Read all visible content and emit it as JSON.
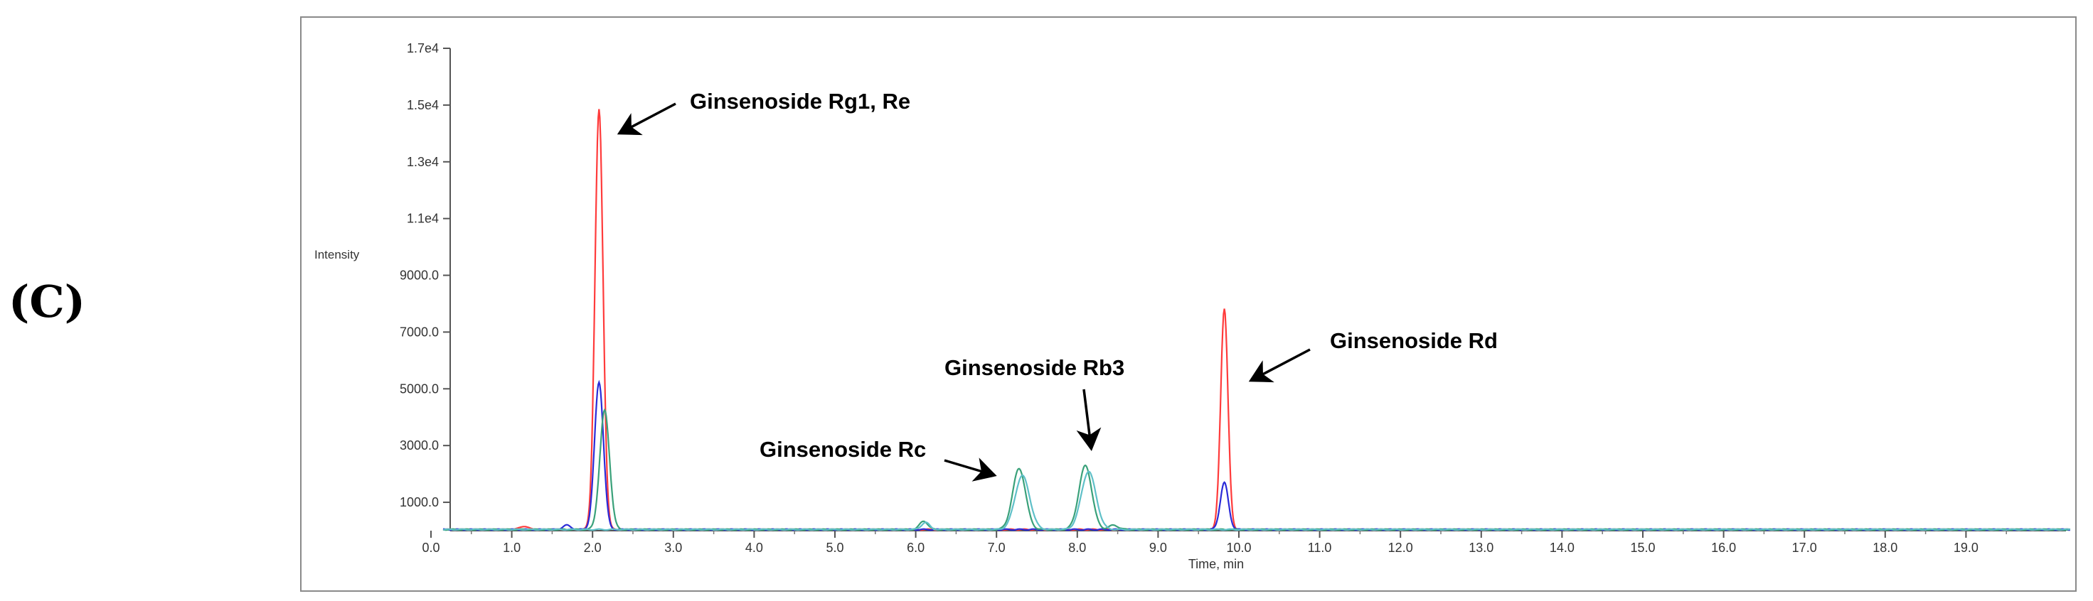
{
  "panel_label": "(C)",
  "chart_data": {
    "type": "line",
    "title": "",
    "xlabel": "Time, min",
    "ylabel": "Intensity",
    "xlim": [
      0,
      20.3
    ],
    "ylim": [
      0,
      17000
    ],
    "x_ticks": [
      0,
      1,
      2,
      3,
      4,
      5,
      6,
      7,
      8,
      9,
      10,
      11,
      12,
      13,
      14,
      15,
      16,
      17,
      18,
      19
    ],
    "x_tick_labels": [
      "0.0",
      "1.0",
      "2.0",
      "3.0",
      "4.0",
      "5.0",
      "6.0",
      "7.0",
      "8.0",
      "9.0",
      "10.0",
      "11.0",
      "12.0",
      "13.0",
      "14.0",
      "15.0",
      "16.0",
      "17.0",
      "18.0",
      "19.0"
    ],
    "y_ticks": [
      1000,
      3000,
      5000,
      7000,
      9000,
      11000,
      13000,
      15000,
      17000
    ],
    "y_tick_labels": [
      "1000.0",
      "3000.0",
      "5000.0",
      "7000.0",
      "9000.0",
      "1.1e4",
      "1.3e4",
      "1.5e4",
      "1.7e4"
    ],
    "grid": false,
    "legend": "none",
    "series": [
      {
        "color": "#ff3b3b",
        "peaks": [
          {
            "x": 2.08,
            "y": 14800,
            "width": 0.05
          },
          {
            "x": 9.82,
            "y": 7800,
            "width": 0.045
          },
          {
            "x": 1.15,
            "y": 120,
            "width": 0.05
          }
        ]
      },
      {
        "color": "#2b2bd8",
        "peaks": [
          {
            "x": 2.08,
            "y": 5200,
            "width": 0.055
          },
          {
            "x": 9.82,
            "y": 1650,
            "width": 0.05
          },
          {
            "x": 1.68,
            "y": 150,
            "width": 0.05
          }
        ]
      },
      {
        "color": "#3aa17a",
        "peaks": [
          {
            "x": 2.15,
            "y": 4200,
            "width": 0.06
          },
          {
            "x": 7.28,
            "y": 2150,
            "width": 0.08
          },
          {
            "x": 8.1,
            "y": 2250,
            "width": 0.08
          },
          {
            "x": 6.1,
            "y": 300,
            "width": 0.05
          },
          {
            "x": 8.45,
            "y": 150,
            "width": 0.06
          }
        ]
      },
      {
        "color": "#5fc0c8",
        "peaks": [
          {
            "x": 7.32,
            "y": 1900,
            "width": 0.09
          },
          {
            "x": 8.14,
            "y": 2050,
            "width": 0.09
          },
          {
            "x": 6.12,
            "y": 250,
            "width": 0.05
          }
        ]
      }
    ],
    "annotations": [
      {
        "text": "Ginsenoside Rg1, Re",
        "x": 2.1,
        "y": 14800
      },
      {
        "text": "Ginsenoside Rc",
        "x": 7.28,
        "y": 2150
      },
      {
        "text": "Ginsenoside Rb3",
        "x": 8.1,
        "y": 2250
      },
      {
        "text": "Ginsenoside Rd",
        "x": 9.82,
        "y": 7800
      }
    ]
  }
}
